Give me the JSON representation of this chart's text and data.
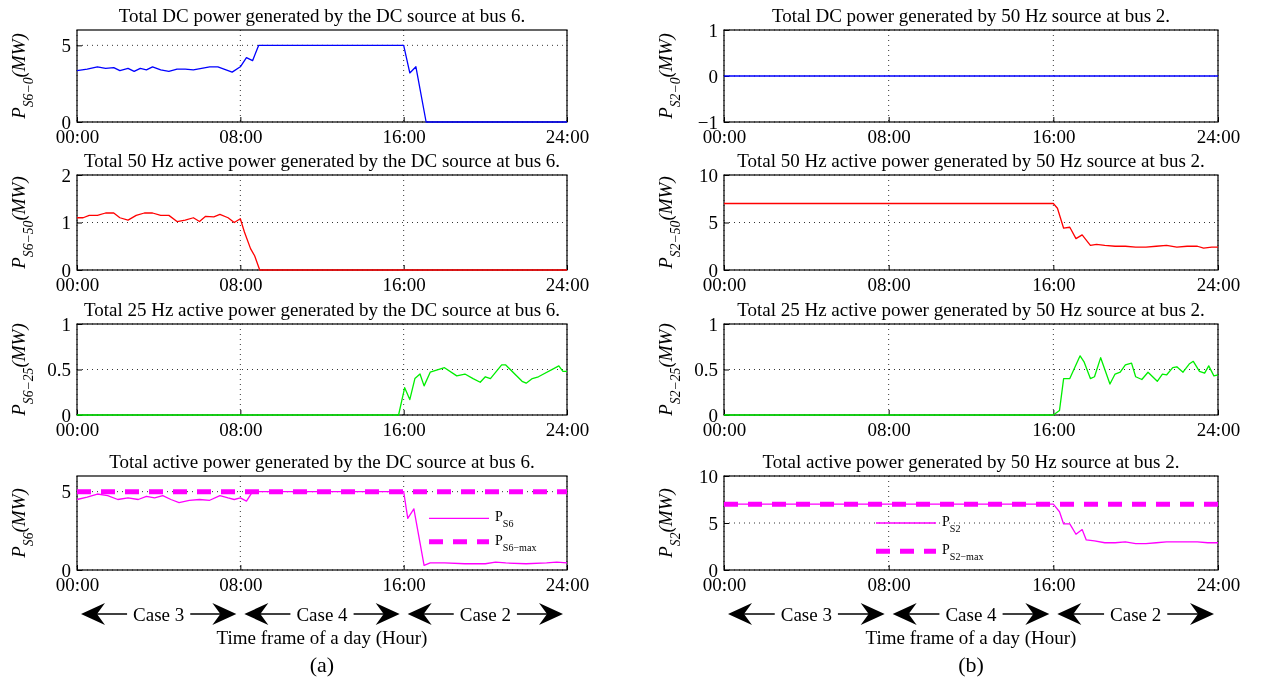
{
  "chart_data": [
    {
      "type": "line",
      "title": "Total DC power generated by the DC source at bus 6.",
      "ylabel": "P$_{S6−0}$(MW)",
      "xlim": [
        0,
        24
      ],
      "xticks": [
        {
          "value": 0,
          "label": "00:00"
        },
        {
          "value": 8,
          "label": "08:00"
        },
        {
          "value": 16,
          "label": "16:00"
        },
        {
          "value": 24,
          "label": "24:00"
        }
      ],
      "ylim": [
        0,
        6
      ],
      "yticks": [
        0,
        5
      ],
      "grid": true,
      "series": [
        {
          "color": "#0000ff",
          "line_style": "solid",
          "x": [
            0,
            0.5,
            1,
            1.4,
            1.8,
            2.1,
            2.5,
            2.8,
            3.1,
            3.4,
            3.7,
            4.1,
            4.5,
            4.9,
            5.3,
            5.7,
            6.1,
            6.5,
            6.9,
            7.3,
            7.6,
            8,
            8.3,
            8.6,
            8.9,
            16,
            16.3,
            16.6,
            17.1,
            24
          ],
          "values": [
            3.35,
            3.45,
            3.6,
            3.5,
            3.55,
            3.35,
            3.5,
            3.3,
            3.5,
            3.4,
            3.6,
            3.4,
            3.3,
            3.45,
            3.45,
            3.4,
            3.5,
            3.6,
            3.6,
            3.4,
            3.25,
            3.6,
            4.2,
            4.0,
            5,
            5,
            3.2,
            3.6,
            0,
            0
          ]
        }
      ]
    },
    {
      "type": "line",
      "title": "Total 50 Hz active power generated by the DC source at bus 6.",
      "ylabel": "P$_{S6−50}$(MW)",
      "xlim": [
        0,
        24
      ],
      "xticks": [
        {
          "value": 0,
          "label": "00:00"
        },
        {
          "value": 8,
          "label": "08:00"
        },
        {
          "value": 16,
          "label": "16:00"
        },
        {
          "value": 24,
          "label": "24:00"
        }
      ],
      "ylim": [
        0,
        2
      ],
      "yticks": [
        0,
        1,
        2
      ],
      "grid": true,
      "series": [
        {
          "color": "#ff0000",
          "line_style": "solid",
          "x": [
            0,
            0.3,
            0.6,
            1,
            1.4,
            1.8,
            2.1,
            2.5,
            2.9,
            3.3,
            3.7,
            4.1,
            4.5,
            4.9,
            5.3,
            5.7,
            6.0,
            6.3,
            6.7,
            7,
            7.4,
            7.7,
            8,
            8.2,
            8.5,
            8.7,
            8.95,
            24
          ],
          "values": [
            1.1,
            1.1,
            1.15,
            1.15,
            1.2,
            1.2,
            1.1,
            1.05,
            1.15,
            1.2,
            1.2,
            1.15,
            1.15,
            1.02,
            1.05,
            1.1,
            1.02,
            1.13,
            1.12,
            1.17,
            1.1,
            1.0,
            1.08,
            0.8,
            0.45,
            0.3,
            0,
            0
          ]
        }
      ]
    },
    {
      "type": "line",
      "title": "Total 25 Hz active power generated by the DC source at bus 6.",
      "ylabel": "P$_{S6−25}$(MW)",
      "xlim": [
        0,
        24
      ],
      "xticks": [
        {
          "value": 0,
          "label": "00:00"
        },
        {
          "value": 8,
          "label": "08:00"
        },
        {
          "value": 16,
          "label": "16:00"
        },
        {
          "value": 24,
          "label": "24:00"
        }
      ],
      "ylim": [
        0,
        1
      ],
      "yticks": [
        0,
        0.5,
        1
      ],
      "grid": true,
      "series": [
        {
          "color": "#00ee00",
          "line_style": "solid",
          "x": [
            0,
            15.75,
            16.05,
            16.3,
            16.55,
            16.8,
            17,
            17.3,
            18,
            18.6,
            19,
            19.4,
            19.75,
            20,
            20.25,
            20.8,
            21,
            21.8,
            22,
            22.3,
            22.6,
            23.6,
            23.8,
            24
          ],
          "values": [
            0,
            0,
            0.3,
            0.17,
            0.4,
            0.45,
            0.32,
            0.47,
            0.52,
            0.43,
            0.45,
            0.4,
            0.36,
            0.42,
            0.4,
            0.55,
            0.55,
            0.37,
            0.35,
            0.4,
            0.42,
            0.54,
            0.48,
            0.48
          ]
        }
      ]
    },
    {
      "type": "line",
      "title": "Total active power generated by the DC source at bus 6.",
      "ylabel": "P$_{S6}$(MW)",
      "xlabel": "Time frame of a day (Hour)",
      "xlim": [
        0,
        24
      ],
      "xticks": [
        {
          "value": 0,
          "label": "00:00"
        },
        {
          "value": 8,
          "label": "08:00"
        },
        {
          "value": 16,
          "label": "16:00"
        },
        {
          "value": 24,
          "label": "24:00"
        }
      ],
      "ylim": [
        0,
        6
      ],
      "yticks": [
        0,
        5
      ],
      "grid": true,
      "legend": "right",
      "series": [
        {
          "name": "P$_{S6}$",
          "color": "#ff00ff",
          "line_style": "solid",
          "x": [
            0,
            0.5,
            1,
            1.5,
            2,
            2.5,
            3,
            3.4,
            3.8,
            4.2,
            4.6,
            5,
            5.5,
            6,
            6.5,
            7,
            7.4,
            7.7,
            8,
            8.3,
            8.6,
            16,
            16.2,
            16.5,
            17,
            17.3,
            18,
            19,
            20,
            20.5,
            21,
            22,
            23,
            23.5,
            24
          ],
          "values": [
            4.5,
            4.65,
            4.85,
            4.75,
            4.5,
            4.6,
            4.5,
            4.7,
            4.6,
            4.75,
            4.5,
            4.3,
            4.45,
            4.5,
            4.45,
            4.75,
            4.6,
            4.5,
            4.6,
            4.4,
            5,
            5,
            3.3,
            3.9,
            0.3,
            0.45,
            0.45,
            0.4,
            0.4,
            0.5,
            0.45,
            0.4,
            0.45,
            0.5,
            0.45
          ]
        },
        {
          "name": "P$_{S6−max}$",
          "color": "#ff00ff",
          "line_style": "dashed",
          "x": [
            0,
            24
          ],
          "values": [
            5,
            5
          ]
        }
      ],
      "annotations": [
        "Case 3",
        "Case 4",
        "Case 2",
        "(a)"
      ]
    },
    {
      "type": "line",
      "title": "Total DC power generated by 50 Hz source at bus 2.",
      "ylabel": "P$_{S2−0}$(MW)",
      "xlim": [
        0,
        24
      ],
      "xticks": [
        {
          "value": 0,
          "label": "00:00"
        },
        {
          "value": 8,
          "label": "08:00"
        },
        {
          "value": 16,
          "label": "16:00"
        },
        {
          "value": 24,
          "label": "24:00"
        }
      ],
      "ylim": [
        -1,
        1
      ],
      "yticks": [
        {
          "value": -1,
          "label": "−1"
        },
        0,
        1
      ],
      "grid": true,
      "series": [
        {
          "color": "#0000ff",
          "line_style": "solid",
          "x": [
            0,
            24
          ],
          "values": [
            0,
            0
          ]
        }
      ]
    },
    {
      "type": "line",
      "title": "Total 50 Hz active power generated by 50 Hz source at bus 2.",
      "ylabel": "P$_{S2−50}$(MW)",
      "xlim": [
        0,
        24
      ],
      "xticks": [
        {
          "value": 0,
          "label": "00:00"
        },
        {
          "value": 8,
          "label": "08:00"
        },
        {
          "value": 16,
          "label": "16:00"
        },
        {
          "value": 24,
          "label": "24:00"
        }
      ],
      "ylim": [
        0,
        10
      ],
      "yticks": [
        0,
        5,
        10
      ],
      "grid": true,
      "series": [
        {
          "color": "#ff0000",
          "line_style": "solid",
          "x": [
            0,
            16,
            16.2,
            16.5,
            16.8,
            17.1,
            17.4,
            17.8,
            18.1,
            18.5,
            19,
            19.5,
            20,
            20.5,
            21,
            21.5,
            22,
            22.5,
            23,
            23.3,
            23.7,
            24
          ],
          "values": [
            7,
            7,
            6.5,
            4.4,
            4.5,
            3.3,
            3.7,
            2.6,
            2.7,
            2.6,
            2.5,
            2.5,
            2.4,
            2.4,
            2.5,
            2.6,
            2.4,
            2.5,
            2.5,
            2.3,
            2.4,
            2.4
          ]
        }
      ]
    },
    {
      "type": "line",
      "title": "Total 25 Hz active power generated by 50 Hz source at bus 2.",
      "ylabel": "P$_{S2−25}$(MW)",
      "xlim": [
        0,
        24
      ],
      "xticks": [
        {
          "value": 0,
          "label": "00:00"
        },
        {
          "value": 8,
          "label": "08:00"
        },
        {
          "value": 16,
          "label": "16:00"
        },
        {
          "value": 24,
          "label": "24:00"
        }
      ],
      "ylim": [
        0,
        1
      ],
      "yticks": [
        0,
        0.5,
        1
      ],
      "grid": true,
      "series": [
        {
          "color": "#00ee00",
          "line_style": "solid",
          "x": [
            0,
            16,
            16.3,
            16.5,
            16.8,
            17.3,
            17.5,
            17.8,
            18,
            18.3,
            18.75,
            19,
            19.25,
            19.5,
            19.8,
            20,
            20.3,
            20.6,
            21.05,
            21.3,
            21.5,
            21.8,
            22,
            22.3,
            22.6,
            22.8,
            23.1,
            23.35,
            23.55,
            23.8,
            24
          ],
          "values": [
            0,
            0,
            0.05,
            0.4,
            0.4,
            0.65,
            0.58,
            0.4,
            0.42,
            0.63,
            0.34,
            0.45,
            0.47,
            0.55,
            0.57,
            0.42,
            0.39,
            0.47,
            0.37,
            0.45,
            0.44,
            0.52,
            0.53,
            0.47,
            0.56,
            0.59,
            0.48,
            0.46,
            0.54,
            0.43,
            0.44
          ]
        }
      ]
    },
    {
      "type": "line",
      "title": "Total active power generated by 50 Hz source at bus 2.",
      "ylabel": "P$_{S2}$(MW)",
      "xlabel": "Time frame of a day (Hour)",
      "xlim": [
        0,
        24
      ],
      "xticks": [
        {
          "value": 0,
          "label": "00:00"
        },
        {
          "value": 8,
          "label": "08:00"
        },
        {
          "value": 16,
          "label": "16:00"
        },
        {
          "value": 24,
          "label": "24:00"
        }
      ],
      "ylim": [
        0,
        10
      ],
      "yticks": [
        0,
        5,
        10
      ],
      "grid": true,
      "legend": "bottom",
      "series": [
        {
          "name": "P$_{S2}$",
          "color": "#ff00ff",
          "line_style": "solid",
          "x": [
            0,
            16,
            16.3,
            16.5,
            16.8,
            17.1,
            17.4,
            17.6,
            18,
            18.5,
            19,
            19.5,
            20,
            20.5,
            21,
            21.5,
            22,
            22.5,
            23,
            23.5,
            24
          ],
          "values": [
            7,
            7,
            6.2,
            4.9,
            4.9,
            3.8,
            4.3,
            3.2,
            3.1,
            2.9,
            2.9,
            3.0,
            2.8,
            2.8,
            2.9,
            3.0,
            3.0,
            3.0,
            3.0,
            2.9,
            2.9
          ]
        },
        {
          "name": "P$_{S2−max}$",
          "color": "#ff00ff",
          "line_style": "dashed",
          "x": [
            0,
            24
          ],
          "values": [
            7,
            7
          ]
        }
      ],
      "annotations": [
        "Case 3",
        "Case 4",
        "Case 2",
        "(b)"
      ]
    }
  ]
}
